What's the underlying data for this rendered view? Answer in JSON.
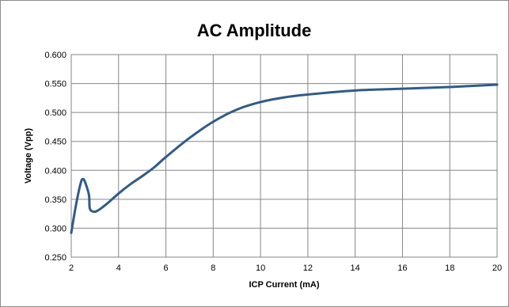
{
  "chart_data": {
    "type": "line",
    "title": "AC Amplitude",
    "xlabel": "ICP Current (mA)",
    "ylabel": "Voltage (Vpp)",
    "xlim": [
      2,
      20
    ],
    "ylim": [
      0.25,
      0.6
    ],
    "x_ticks": [
      "2",
      "4",
      "6",
      "8",
      "10",
      "12",
      "14",
      "16",
      "18",
      "20"
    ],
    "y_ticks": [
      "0.250",
      "0.300",
      "0.350",
      "0.400",
      "0.450",
      "0.500",
      "0.550",
      "0.600"
    ],
    "grid": true,
    "legend": "none",
    "series": [
      {
        "color": "#2f5b8a",
        "points": [
          [
            2.0,
            0.292
          ],
          [
            2.2,
            0.34
          ],
          [
            2.4,
            0.378
          ],
          [
            2.5,
            0.385
          ],
          [
            2.6,
            0.378
          ],
          [
            2.75,
            0.357
          ],
          [
            2.78,
            0.335
          ],
          [
            2.9,
            0.329
          ],
          [
            3.1,
            0.33
          ],
          [
            3.5,
            0.342
          ],
          [
            4.0,
            0.36
          ],
          [
            4.5,
            0.376
          ],
          [
            5.0,
            0.39
          ],
          [
            5.5,
            0.405
          ],
          [
            6.0,
            0.423
          ],
          [
            7.0,
            0.456
          ],
          [
            8.0,
            0.484
          ],
          [
            9.0,
            0.505
          ],
          [
            10.0,
            0.518
          ],
          [
            11.0,
            0.526
          ],
          [
            12.0,
            0.531
          ],
          [
            14.0,
            0.538
          ],
          [
            16.0,
            0.541
          ],
          [
            18.0,
            0.544
          ],
          [
            20.0,
            0.548
          ]
        ]
      }
    ]
  }
}
